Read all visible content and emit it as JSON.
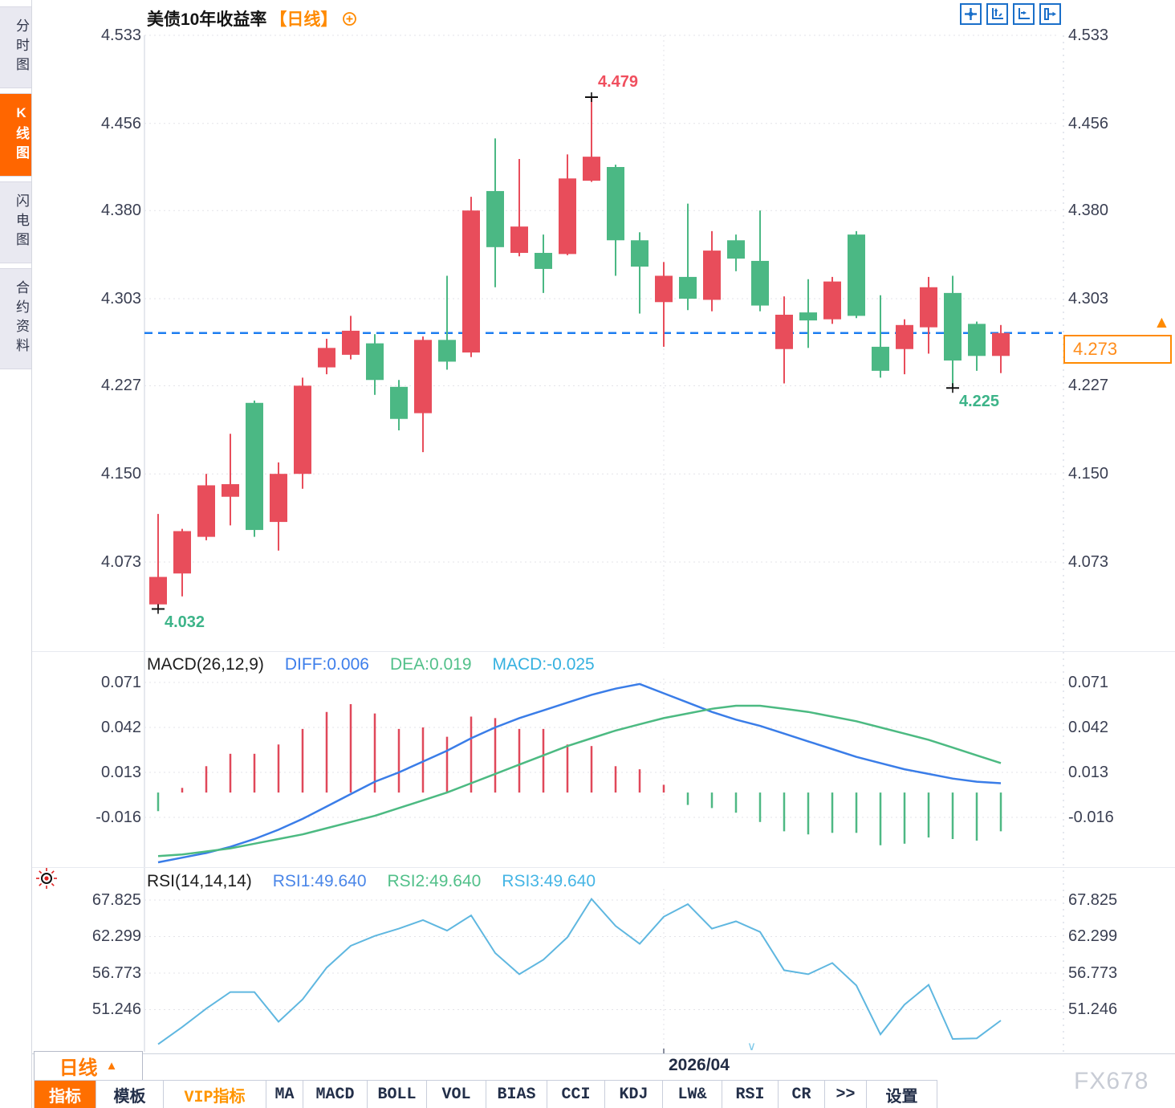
{
  "sidebar": {
    "items": [
      {
        "label": "分时图",
        "active": false
      },
      {
        "label": "K线图",
        "active": true
      },
      {
        "label": "闪电图",
        "active": false
      },
      {
        "label": "合约资料",
        "active": false
      }
    ]
  },
  "header": {
    "title": "美债10年收益率",
    "period_tag": "【日线】",
    "icons": [
      "pan-cross-icon",
      "zoom-y-axis-icon",
      "zoom-x-axis-icon",
      "shift-right-icon"
    ]
  },
  "time_axis": {
    "label": "2026/04",
    "gridline_index": 21
  },
  "price_box": {
    "value": "4.273",
    "color": "#ff8a00"
  },
  "bottom": {
    "period_button": {
      "label": "日线",
      "arrow": "▲"
    },
    "toolbar": [
      {
        "label": "指标",
        "style": "active"
      },
      {
        "label": "模板",
        "style": ""
      },
      {
        "label": "VIP指标",
        "style": "vip"
      },
      {
        "label": "MA",
        "style": ""
      },
      {
        "label": "MACD",
        "style": ""
      },
      {
        "label": "BOLL",
        "style": ""
      },
      {
        "label": "VOL",
        "style": ""
      },
      {
        "label": "BIAS",
        "style": ""
      },
      {
        "label": "CCI",
        "style": ""
      },
      {
        "label": "KDJ",
        "style": ""
      },
      {
        "label": "LW&",
        "style": ""
      },
      {
        "label": "RSI",
        "style": ""
      },
      {
        "label": "CR",
        "style": ""
      },
      {
        "label": ">>",
        "style": ""
      },
      {
        "label": "设置",
        "style": ""
      }
    ]
  },
  "watermark": {
    "text": "FX678"
  },
  "chart_data": [
    {
      "type": "candlestick",
      "title": "美债10年收益率",
      "period": "日线",
      "up_color": "#e84d5b",
      "down_color": "#4bb884",
      "grid": true,
      "y_ticks": [
        "4.533",
        "4.456",
        "4.380",
        "4.303",
        "4.227",
        "4.150",
        "4.073"
      ],
      "ylim": [
        3.99,
        4.533
      ],
      "current_price": "4.273",
      "price_line_color": "#1c7df0",
      "open": [
        4.036,
        4.063,
        4.095,
        4.13,
        4.212,
        4.108,
        4.15,
        4.243,
        4.254,
        4.264,
        4.226,
        4.203,
        4.267,
        4.256,
        4.397,
        4.343,
        4.343,
        4.342,
        4.406,
        4.418,
        4.354,
        4.3,
        4.322,
        4.302,
        4.354,
        4.336,
        4.259,
        4.291,
        4.285,
        4.359,
        4.261,
        4.259,
        4.278,
        4.308,
        4.281,
        4.253
      ],
      "high": [
        4.115,
        4.102,
        4.15,
        4.185,
        4.214,
        4.16,
        4.234,
        4.268,
        4.288,
        4.272,
        4.232,
        4.27,
        4.323,
        4.392,
        4.443,
        4.425,
        4.359,
        4.429,
        4.479,
        4.42,
        4.361,
        4.335,
        4.386,
        4.362,
        4.359,
        4.38,
        4.305,
        4.32,
        4.322,
        4.362,
        4.306,
        4.285,
        4.322,
        4.323,
        4.283,
        4.28
      ],
      "low": [
        4.032,
        4.043,
        4.092,
        4.105,
        4.095,
        4.083,
        4.137,
        4.237,
        4.25,
        4.219,
        4.188,
        4.169,
        4.241,
        4.252,
        4.313,
        4.34,
        4.308,
        4.341,
        4.405,
        4.323,
        4.29,
        4.261,
        4.293,
        4.292,
        4.327,
        4.292,
        4.229,
        4.26,
        4.281,
        4.286,
        4.234,
        4.237,
        4.255,
        4.225,
        4.24,
        4.238
      ],
      "close": [
        4.06,
        4.1,
        4.14,
        4.141,
        4.101,
        4.15,
        4.227,
        4.26,
        4.275,
        4.232,
        4.198,
        4.267,
        4.248,
        4.38,
        4.348,
        4.366,
        4.329,
        4.408,
        4.427,
        4.354,
        4.331,
        4.323,
        4.303,
        4.345,
        4.338,
        4.297,
        4.289,
        4.284,
        4.318,
        4.288,
        4.24,
        4.28,
        4.313,
        4.249,
        4.253,
        4.273
      ],
      "annotations": [
        {
          "kind": "high",
          "index": 18,
          "value": 4.479,
          "label": "4.479",
          "color": "#f04f5e"
        },
        {
          "kind": "low",
          "index": 0,
          "value": 4.032,
          "label": "4.032",
          "color": "#3db489"
        },
        {
          "kind": "low",
          "index": 33,
          "value": 4.225,
          "label": "4.225",
          "color": "#3db489"
        }
      ]
    },
    {
      "type": "bar",
      "name": "MACD(26,12,9)",
      "legend": [
        {
          "text": "DIFF:0.006",
          "color": "#3d7eeb"
        },
        {
          "text": "DEA:0.019",
          "color": "#52c08a"
        },
        {
          "text": "MACD:-0.025",
          "color": "#35b1e0"
        }
      ],
      "y_ticks": [
        "0.071",
        "0.042",
        "0.013",
        "-0.016"
      ],
      "histogram": [
        -0.012,
        0.003,
        0.017,
        0.025,
        0.025,
        0.031,
        0.041,
        0.052,
        0.057,
        0.051,
        0.041,
        0.042,
        0.036,
        0.049,
        0.048,
        0.041,
        0.041,
        0.031,
        0.03,
        0.017,
        0.015,
        0.005,
        -0.008,
        -0.01,
        -0.013,
        -0.019,
        -0.025,
        -0.027,
        -0.026,
        -0.026,
        -0.034,
        -0.033,
        -0.029,
        -0.03,
        -0.031,
        -0.025
      ],
      "diff": [
        -0.045,
        -0.042,
        -0.039,
        -0.035,
        -0.03,
        -0.024,
        -0.017,
        -0.009,
        -0.001,
        0.007,
        0.013,
        0.02,
        0.027,
        0.035,
        0.042,
        0.048,
        0.053,
        0.058,
        0.063,
        0.067,
        0.07,
        0.064,
        0.058,
        0.052,
        0.047,
        0.043,
        0.038,
        0.033,
        0.028,
        0.023,
        0.019,
        0.015,
        0.012,
        0.009,
        0.007,
        0.006
      ],
      "dea": [
        -0.041,
        -0.04,
        -0.038,
        -0.036,
        -0.033,
        -0.03,
        -0.027,
        -0.023,
        -0.019,
        -0.015,
        -0.01,
        -0.005,
        0.0,
        0.006,
        0.012,
        0.018,
        0.024,
        0.03,
        0.035,
        0.04,
        0.044,
        0.048,
        0.051,
        0.054,
        0.056,
        0.056,
        0.054,
        0.052,
        0.049,
        0.046,
        0.042,
        0.038,
        0.034,
        0.029,
        0.024,
        0.019
      ],
      "bar_up_color": "#e0485a",
      "bar_down_color": "#4eb884",
      "diff_color": "#3a7de8",
      "dea_color": "#4cba82"
    },
    {
      "type": "line",
      "name": "RSI(14,14,14)",
      "legend": [
        {
          "text": "RSI1:49.640",
          "color": "#4a86e8"
        },
        {
          "text": "RSI2:49.640",
          "color": "#52c08a"
        },
        {
          "text": "RSI3:49.640",
          "color": "#45b5e5"
        }
      ],
      "y_ticks": [
        "67.825",
        "62.299",
        "56.773",
        "51.246"
      ],
      "line_color": "#5fb7e0",
      "values": [
        46.0,
        48.6,
        51.4,
        53.9,
        53.9,
        49.4,
        52.8,
        57.6,
        60.9,
        62.4,
        63.5,
        64.8,
        63.2,
        65.5,
        59.8,
        56.6,
        58.8,
        62.2,
        68.0,
        63.9,
        61.2,
        65.3,
        67.2,
        63.5,
        64.6,
        63.0,
        57.2,
        56.6,
        58.3,
        54.9,
        47.5,
        52.0,
        55.0,
        46.8,
        46.9,
        49.6
      ]
    }
  ]
}
